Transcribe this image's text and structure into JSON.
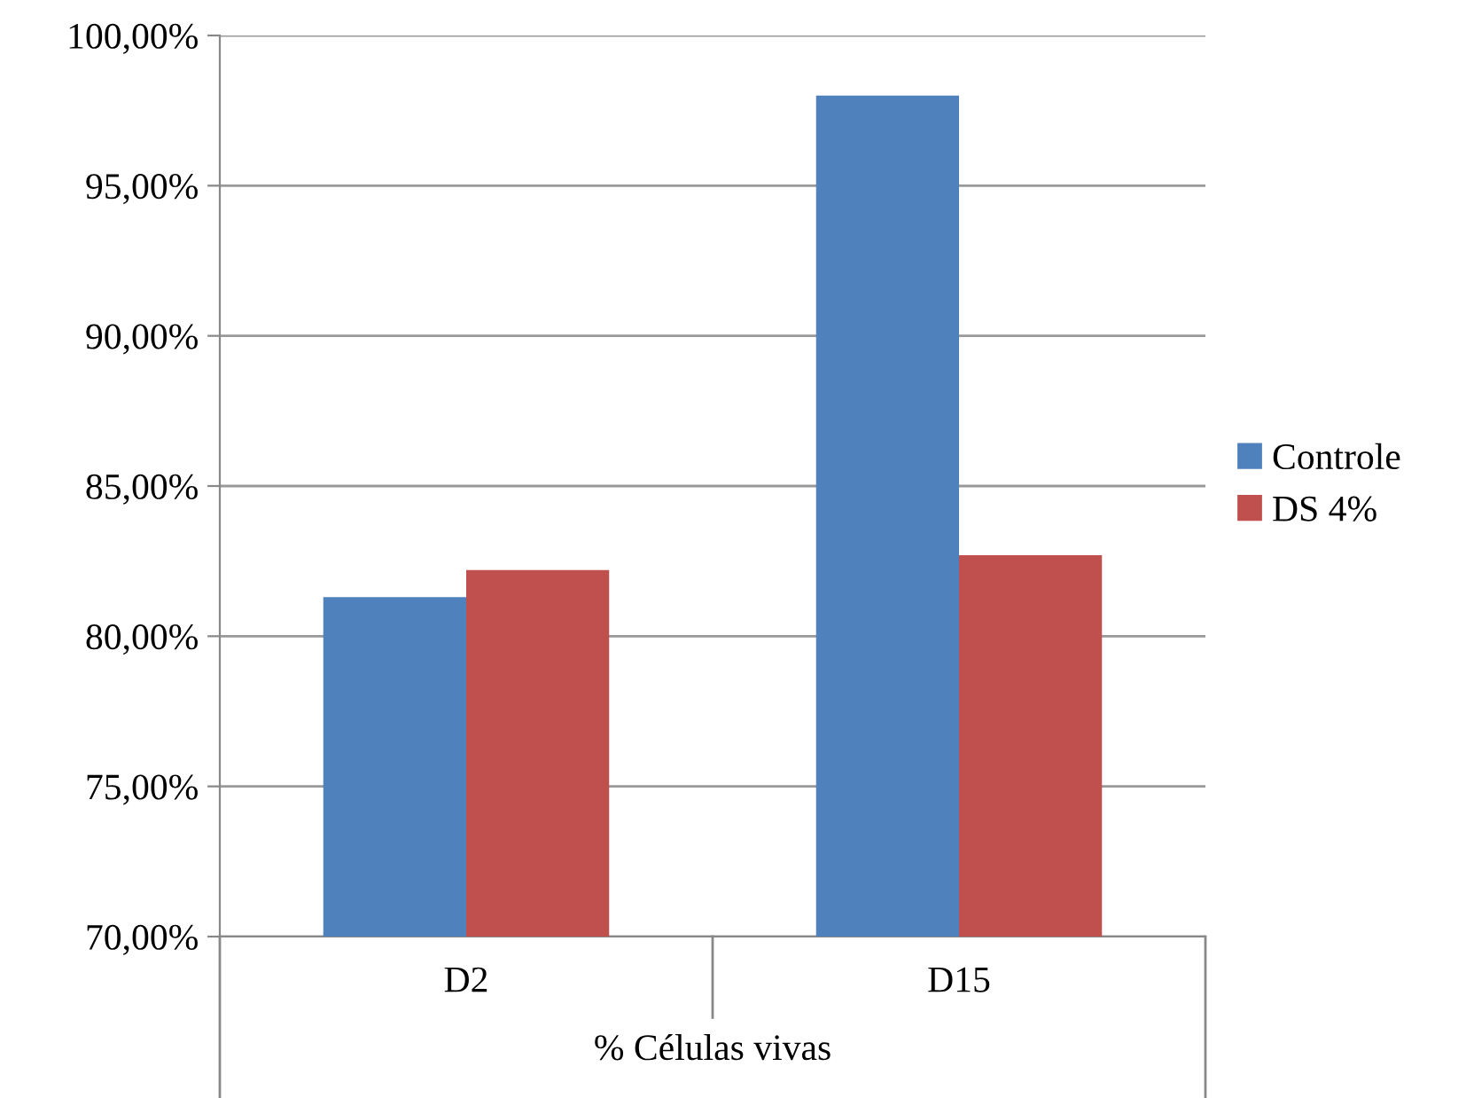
{
  "chart_data": {
    "type": "bar",
    "categories": [
      "D2",
      "D15"
    ],
    "xlabel": "% Células vivas",
    "series": [
      {
        "name": "Controle",
        "color": "#4f81bd",
        "values": [
          81.3,
          98.0
        ]
      },
      {
        "name": "DS 4%",
        "color": "#c0504d",
        "values": [
          82.2,
          82.7
        ]
      }
    ],
    "ylim": [
      70,
      100
    ],
    "yticks": [
      {
        "value": 70,
        "label": "70,00%"
      },
      {
        "value": 75,
        "label": "75,00%"
      },
      {
        "value": 80,
        "label": "80,00%"
      },
      {
        "value": 85,
        "label": "85,00%"
      },
      {
        "value": 90,
        "label": "90,00%"
      },
      {
        "value": 95,
        "label": "95,00%"
      },
      {
        "value": 100,
        "label": "100,00%"
      }
    ],
    "grid": "y",
    "legend": "right"
  }
}
